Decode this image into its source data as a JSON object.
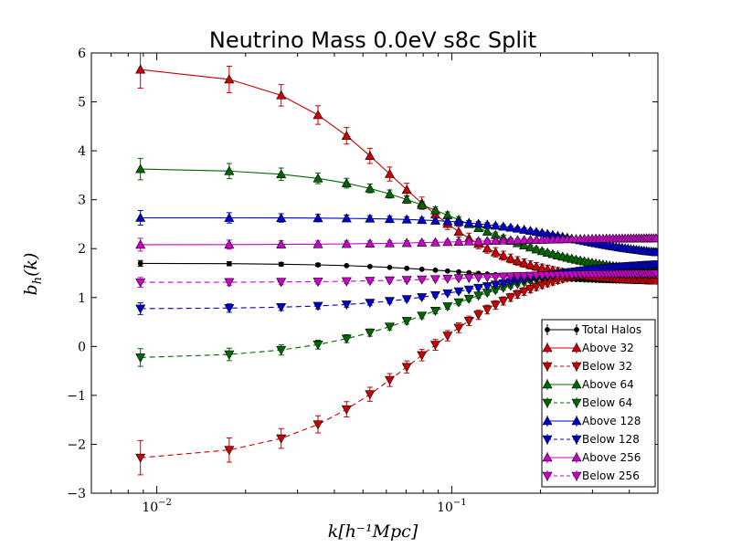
{
  "chart_data": {
    "type": "line",
    "title": "Neutrino Mass 0.0eV s8c Split",
    "xlabel": "k[h⁻¹Mpc]",
    "ylabel": "b_h(k)",
    "xscale": "log",
    "xlim": [
      0.006,
      0.5
    ],
    "ylim": [
      -3,
      6
    ],
    "yticks": [
      -3,
      -2,
      -1,
      0,
      1,
      2,
      3,
      4,
      5,
      6
    ],
    "ytick_labels": [
      "−3",
      "−2",
      "−1",
      "0",
      "1",
      "2",
      "3",
      "4",
      "5",
      "6"
    ],
    "xticks": [
      0.01,
      0.1
    ],
    "xtick_labels": [
      {
        "base": "10",
        "exp": "−2"
      },
      {
        "base": "10",
        "exp": "−1"
      }
    ],
    "grid": false,
    "legend_position": "bottom-right",
    "series": [
      {
        "name": "Total Halos",
        "color": "#000000",
        "marker": "dot",
        "dash": false,
        "x0": 0.009,
        "y0": 1.7,
        "y1": 1.3,
        "k": 0.12,
        "p": 2.0,
        "err0": 0.06
      },
      {
        "name": "Above 32",
        "color": "#cc0000",
        "marker": "triangle-up",
        "dash": false,
        "x0": 0.009,
        "y0": 5.72,
        "y1": 1.3,
        "k": 0.062,
        "p": 2.2,
        "err0": 0.38
      },
      {
        "name": "Below 32",
        "color": "#cc0000",
        "marker": "triangle-down",
        "dash": true,
        "x0": 0.009,
        "y0": -2.33,
        "y1": 1.75,
        "k": 0.075,
        "p": 2.0,
        "err0": 0.35
      },
      {
        "name": "Above 64",
        "color": "#006600",
        "marker": "triangle-up",
        "dash": false,
        "x0": 0.009,
        "y0": 3.64,
        "y1": 1.45,
        "k": 0.11,
        "p": 2.0,
        "err0": 0.22
      },
      {
        "name": "Below 64",
        "color": "#006600",
        "marker": "triangle-down",
        "dash": true,
        "x0": 0.009,
        "y0": -0.25,
        "y1": 1.75,
        "k": 0.09,
        "p": 1.9,
        "err0": 0.18
      },
      {
        "name": "Above 128",
        "color": "#0000cc",
        "marker": "triangle-up",
        "dash": false,
        "x0": 0.009,
        "y0": 2.63,
        "y1": 1.8,
        "k": 0.25,
        "p": 2.5,
        "err0": 0.15
      },
      {
        "name": "Below 128",
        "color": "#0000cc",
        "marker": "triangle-down",
        "dash": true,
        "x0": 0.009,
        "y0": 0.77,
        "y1": 1.75,
        "k": 0.14,
        "p": 2.0,
        "err0": 0.12
      },
      {
        "name": "Above 256",
        "color": "#cc00cc",
        "marker": "triangle-up",
        "dash": false,
        "x0": 0.009,
        "y0": 2.08,
        "y1": 2.22,
        "k": 0.12,
        "p": 2.0,
        "err0": 0.13
      },
      {
        "name": "Below 256",
        "color": "#cc00cc",
        "marker": "triangle-down",
        "dash": true,
        "x0": 0.009,
        "y0": 1.31,
        "y1": 1.5,
        "k": 0.12,
        "p": 2.0,
        "err0": 0.1
      }
    ]
  }
}
